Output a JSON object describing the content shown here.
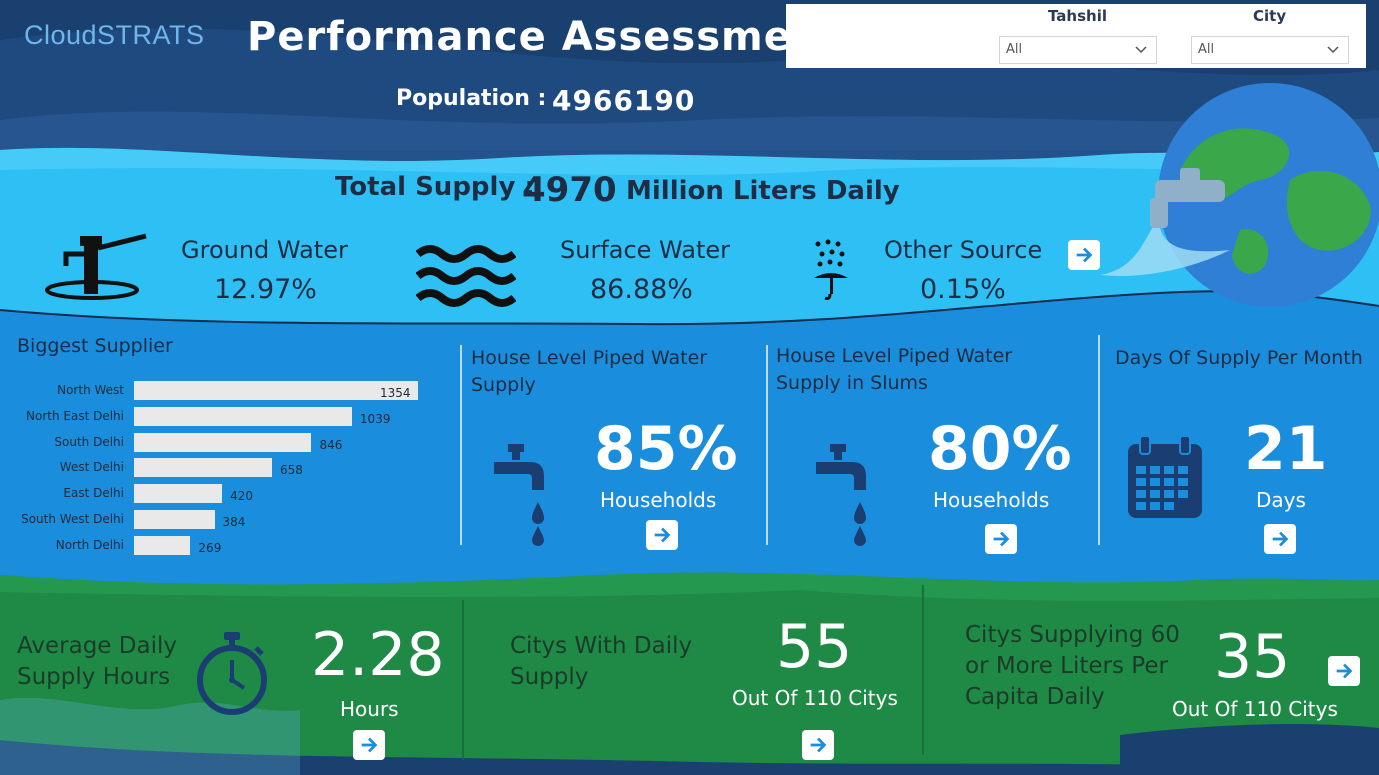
{
  "header": {
    "logo": "CloudSTRATS",
    "title": "Performance Assessment",
    "population_label": "Population :",
    "population_value": "4966190"
  },
  "filters": {
    "tahshil": {
      "label": "Tahshil",
      "value": "All"
    },
    "city": {
      "label": "City",
      "value": "All"
    }
  },
  "supply": {
    "label": "Total Supply :",
    "value": "4970",
    "unit": "Million Liters Daily"
  },
  "sources": [
    {
      "label": "Ground Water",
      "value": "12.97%",
      "icon": "hand-pump-icon"
    },
    {
      "label": "Surface Water",
      "value": "86.88%",
      "icon": "waves-icon"
    },
    {
      "label": "Other Source",
      "value": "0.15%",
      "icon": "rain-umbrella-icon"
    }
  ],
  "biggest_supplier": {
    "title": "Biggest Supplier",
    "chart_data": {
      "type": "bar",
      "orientation": "horizontal",
      "categories": [
        "North West",
        "North East Delhi",
        "South Delhi",
        "West Delhi",
        "East Delhi",
        "South West Delhi",
        "North Delhi"
      ],
      "values": [
        1354,
        1039,
        846,
        658,
        420,
        384,
        269
      ],
      "title": "Biggest Supplier",
      "xlabel": "",
      "ylabel": "",
      "color": "#e9e9e9",
      "grid": false
    }
  },
  "cards": {
    "piped": {
      "title": "House Level Piped Water Supply",
      "value": "85%",
      "sub": "Households",
      "icon": "tap-icon"
    },
    "slums": {
      "title": "House Level Piped Water Supply in Slums",
      "value": "80%",
      "sub": "Households",
      "icon": "tap-icon"
    },
    "days": {
      "title": "Days Of Supply Per Month",
      "value": "21",
      "sub": "Days",
      "icon": "calendar-icon"
    }
  },
  "bottom": {
    "hours": {
      "title_line1": "Average Daily",
      "title_line2": "Supply Hours",
      "value": "2.28",
      "sub": "Hours",
      "icon": "stopwatch-icon"
    },
    "citys": {
      "title_line1": "Citys With Daily",
      "title_line2": "Supply",
      "value": "55",
      "sub": "Out Of 110 Citys"
    },
    "liters": {
      "title_line1": "Citys Supplying 60",
      "title_line2": "or More Liters Per",
      "title_line3": "Capita Daily",
      "value": "35",
      "sub": "Out Of 110 Citys"
    }
  },
  "colors": {
    "navy": "#1a4070",
    "sky": "#2ec0f5",
    "mid_blue": "#1a8edc",
    "green": "#1e8a45",
    "arrow": "#1a8edc"
  }
}
